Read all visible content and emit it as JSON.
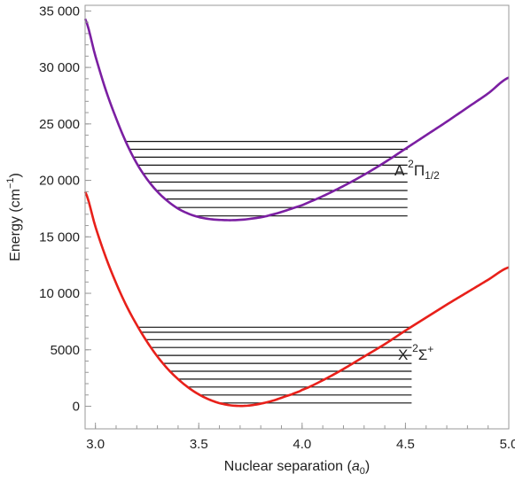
{
  "chart_data": {
    "type": "line",
    "title": "",
    "xlabel": "Nuclear separation (",
    "xlabel_symbol": "a",
    "xlabel_subscript": "0",
    "xlabel_end": ")",
    "ylabel": "Energy (cm",
    "ylabel_superscript": "−1",
    "ylabel_end": ")",
    "xlim": [
      2.95,
      5.0
    ],
    "ylim": [
      -2000,
      35500
    ],
    "x_ticks": [
      3.0,
      3.5,
      4.0,
      4.5,
      5.0
    ],
    "x_tick_labels": [
      "3.0",
      "3.5",
      "4.0",
      "4.5",
      "5.0"
    ],
    "y_ticks": [
      0,
      5000,
      10000,
      15000,
      20000,
      25000,
      30000,
      35000
    ],
    "y_tick_labels": [
      "0",
      "5000",
      "10 000",
      "15 000",
      "20 000",
      "25 000",
      "30 000",
      "35 000"
    ],
    "grid": false,
    "series": [
      {
        "label_main": "A ",
        "label_sup": "2",
        "label_term": "Π",
        "label_sub": "1/2",
        "color": "#7b1fa2",
        "points": [
          [
            2.95,
            34300
          ],
          [
            3.0,
            31000
          ],
          [
            3.05,
            28000
          ],
          [
            3.1,
            25500
          ],
          [
            3.15,
            23300
          ],
          [
            3.2,
            21500
          ],
          [
            3.25,
            20100
          ],
          [
            3.3,
            19000
          ],
          [
            3.35,
            18150
          ],
          [
            3.4,
            17500
          ],
          [
            3.45,
            17050
          ],
          [
            3.5,
            16750
          ],
          [
            3.55,
            16580
          ],
          [
            3.6,
            16500
          ],
          [
            3.67,
            16480
          ],
          [
            3.75,
            16600
          ],
          [
            3.85,
            16950
          ],
          [
            4.0,
            17800
          ],
          [
            4.1,
            18600
          ],
          [
            4.2,
            19500
          ],
          [
            4.3,
            20500
          ],
          [
            4.4,
            21600
          ],
          [
            4.5,
            22800
          ],
          [
            4.6,
            24000
          ],
          [
            4.7,
            25200
          ],
          [
            4.8,
            26450
          ],
          [
            4.9,
            27700
          ],
          [
            5.0,
            29100
          ]
        ],
        "levels": [
          16850,
          17600,
          18350,
          19100,
          19850,
          20600,
          21350,
          22050,
          22750,
          23450
        ],
        "levels_xright": 4.51
      },
      {
        "label_main": "X ",
        "label_sup": "2",
        "label_term": "Σ",
        "label_termsup": "+",
        "color": "#e8201a",
        "points": [
          [
            2.95,
            19000
          ],
          [
            3.0,
            15900
          ],
          [
            3.05,
            13200
          ],
          [
            3.1,
            10900
          ],
          [
            3.15,
            8900
          ],
          [
            3.2,
            7200
          ],
          [
            3.25,
            5700
          ],
          [
            3.3,
            4400
          ],
          [
            3.35,
            3300
          ],
          [
            3.4,
            2400
          ],
          [
            3.45,
            1650
          ],
          [
            3.5,
            1050
          ],
          [
            3.55,
            600
          ],
          [
            3.6,
            270
          ],
          [
            3.67,
            50
          ],
          [
            3.75,
            80
          ],
          [
            3.85,
            450
          ],
          [
            3.95,
            1050
          ],
          [
            4.0,
            1450
          ],
          [
            4.1,
            2300
          ],
          [
            4.2,
            3300
          ],
          [
            4.3,
            4400
          ],
          [
            4.4,
            5500
          ],
          [
            4.5,
            6700
          ],
          [
            4.6,
            7850
          ],
          [
            4.7,
            9000
          ],
          [
            4.8,
            10100
          ],
          [
            4.9,
            11200
          ],
          [
            5.0,
            12300
          ]
        ],
        "levels": [
          290,
          1000,
          1700,
          2400,
          3100,
          3800,
          4500,
          5200,
          5900,
          6550,
          7000
        ],
        "levels_xright": 4.53
      }
    ]
  }
}
